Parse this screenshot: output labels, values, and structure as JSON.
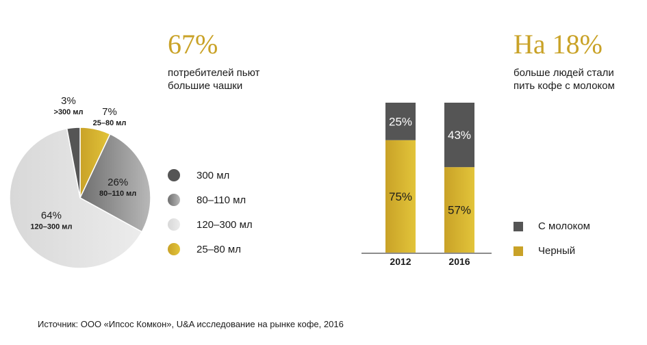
{
  "stat_left": {
    "value": "67%",
    "caption_lines": [
      "потребителей пьют",
      "большие чашки"
    ]
  },
  "stat_right": {
    "value": "На 18%",
    "caption_lines": [
      "больше людей стали",
      "пить кофе с молоком"
    ]
  },
  "source": "Источник: ООО «Ипсос Комкон», U&A исследование на рынке кофе, 2016",
  "colors": {
    "dark": "#555555",
    "gray_grad": [
      "#6f6f6f",
      "#b8b8b8"
    ],
    "light_grad": [
      "#d8d8d8",
      "#ececec"
    ],
    "gold_grad": [
      "#c9a227",
      "#e2c43a"
    ]
  },
  "chart_data": [
    {
      "type": "pie",
      "slices": [
        {
          "label": ">300 мл",
          "percent_label": "3%",
          "value": 3,
          "color": "dark"
        },
        {
          "label": "80–110 мл",
          "percent_label": "26%",
          "value": 26,
          "color": "gray"
        },
        {
          "label": "120–300 мл",
          "percent_label": "64%",
          "value": 64,
          "color": "light"
        },
        {
          "label": "25–80 мл",
          "percent_label": "7%",
          "value": 7,
          "color": "gold"
        }
      ],
      "legend": [
        {
          "label": "300 мл",
          "color": "dark"
        },
        {
          "label": "80–110 мл",
          "color": "gray"
        },
        {
          "label": "120–300 мл",
          "color": "light"
        },
        {
          "label": "25–80 мл",
          "color": "gold"
        }
      ]
    },
    {
      "type": "bar",
      "stacked": true,
      "categories": [
        "2012",
        "2016"
      ],
      "series": [
        {
          "name": "Черный",
          "values": [
            75,
            57
          ],
          "labels": [
            "75%",
            "57%"
          ],
          "color": "gold"
        },
        {
          "name": "С молоком",
          "values": [
            25,
            43
          ],
          "labels": [
            "25%",
            "43%"
          ],
          "color": "dark"
        }
      ],
      "legend": [
        {
          "label": "С молоком",
          "color": "dark"
        },
        {
          "label": "Черный",
          "color": "gold"
        }
      ]
    }
  ]
}
